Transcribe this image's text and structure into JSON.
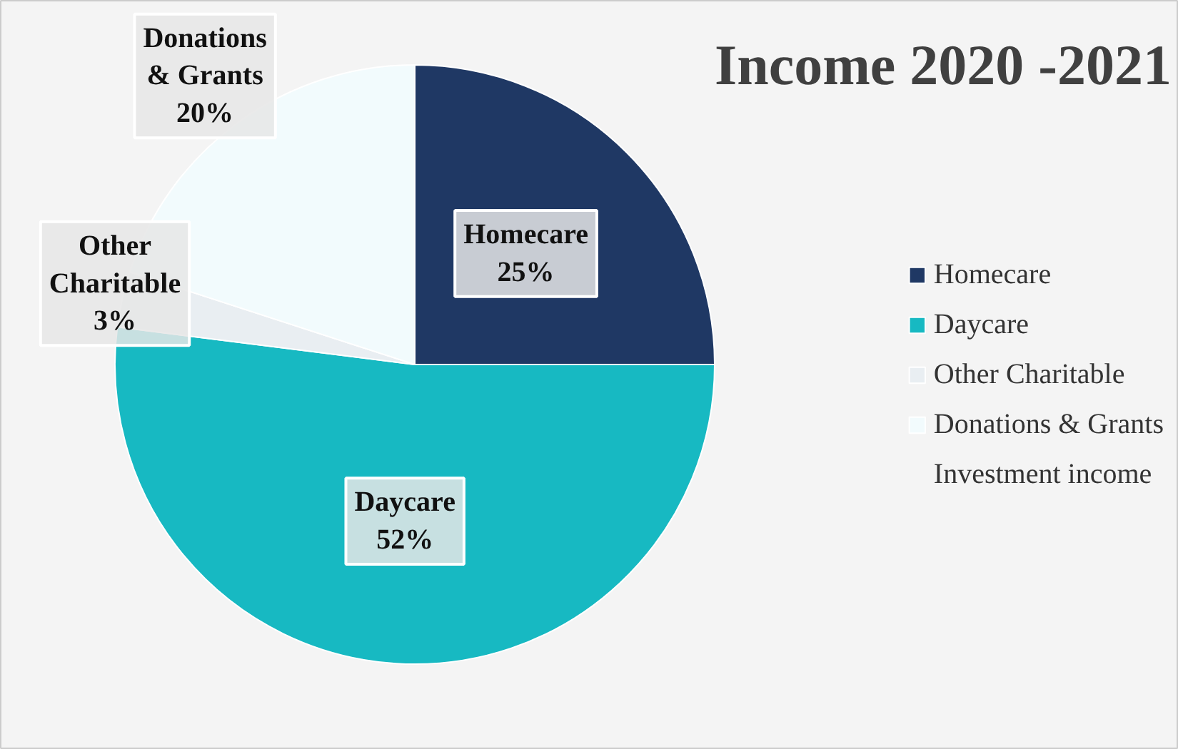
{
  "chart_data": {
    "type": "pie",
    "title": "Income 2020 -2021",
    "categories": [
      "Homecare",
      "Daycare",
      "Other Charitable",
      "Donations & Grants",
      "Investment income"
    ],
    "values": [
      25,
      52,
      3,
      20,
      0
    ],
    "colors": [
      "#1f3864",
      "#17b9c2",
      "#e9eef2",
      "#f2fbfd",
      "#dbe6ec"
    ],
    "value_labels": [
      "25%",
      "52%",
      "3%",
      "20%",
      null
    ],
    "legend": "right"
  }
}
